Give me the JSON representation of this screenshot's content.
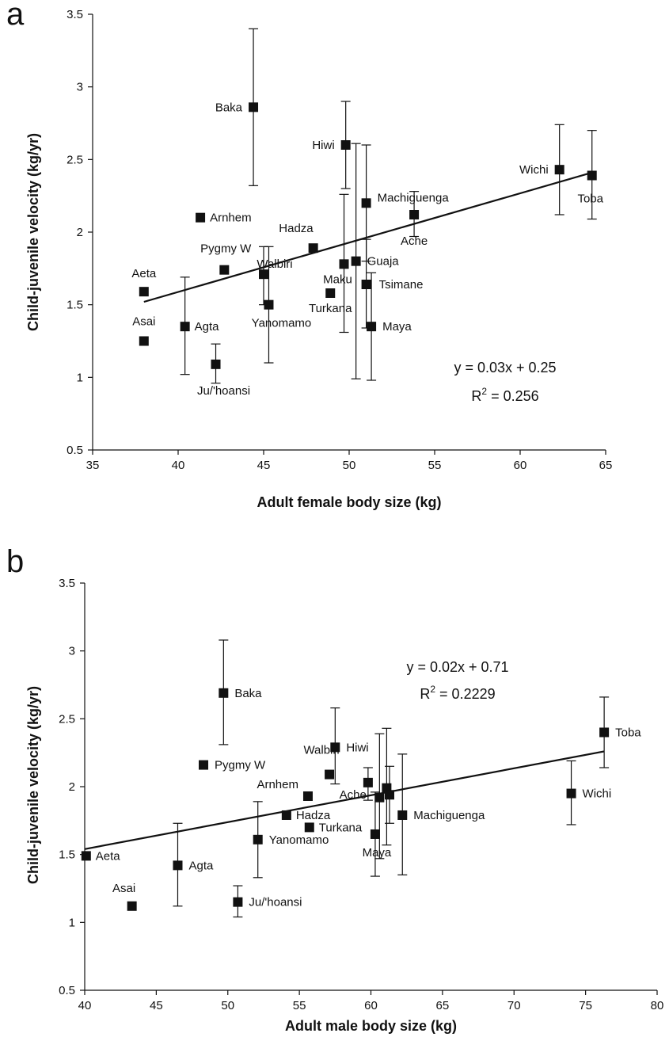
{
  "chart_data": [
    {
      "panel": "a",
      "type": "scatter",
      "xlabel": "Adult female body size (kg)",
      "ylabel": "Child-juvenile velocity (kg/yr)",
      "xlim": [
        35,
        65
      ],
      "ylim": [
        0.5,
        3.5
      ],
      "xticks": [
        "35",
        "40",
        "45",
        "50",
        "55",
        "60",
        "65"
      ],
      "yticks": [
        "0.5",
        "1",
        "1.5",
        "2",
        "2.5",
        "3",
        "3.5"
      ],
      "grid": false,
      "equation": "y = 0.03x + 0.25",
      "r2_prefix": "R",
      "r2_exp": "2",
      "r2_value": " = 0.256",
      "trendline": {
        "x1": 38.0,
        "y1": 1.52,
        "x2": 64.2,
        "y2": 2.41
      },
      "points": [
        {
          "label": "Baka",
          "x": 44.4,
          "y": 2.86,
          "err_low": 2.32,
          "err_high": 3.4,
          "anchor": "end",
          "dx": -14,
          "dy": 5
        },
        {
          "label": "Arnhem",
          "x": 41.3,
          "y": 2.1,
          "anchor": "start",
          "dx": 12,
          "dy": 5
        },
        {
          "label": "Pygmy W",
          "x": 42.7,
          "y": 1.74,
          "anchor": "end",
          "dx": 34,
          "dy": -22
        },
        {
          "label": "Walbiri",
          "x": 45.0,
          "y": 1.71,
          "err_low": 1.5,
          "err_high": 1.9,
          "anchor": "middle",
          "dx": 14,
          "dy": -8
        },
        {
          "label": "Aeta",
          "x": 38.0,
          "y": 1.59,
          "anchor": "middle",
          "dx": 0,
          "dy": -18
        },
        {
          "label": "Asai",
          "x": 38.0,
          "y": 1.25,
          "anchor": "middle",
          "dx": 0,
          "dy": -20
        },
        {
          "label": "Agta",
          "x": 40.4,
          "y": 1.35,
          "err_low": 1.02,
          "err_high": 1.69,
          "anchor": "start",
          "dx": 12,
          "dy": 5
        },
        {
          "label": "Ju/'hoansi",
          "x": 42.2,
          "y": 1.09,
          "err_low": 0.96,
          "err_high": 1.23,
          "anchor": "middle",
          "dx": 10,
          "dy": 38
        },
        {
          "label": "Yanomamo",
          "x": 45.3,
          "y": 1.5,
          "err_low": 1.1,
          "err_high": 1.9,
          "anchor": "middle",
          "dx": 16,
          "dy": 28
        },
        {
          "label": "Hadza",
          "x": 47.9,
          "y": 1.89,
          "anchor": "end",
          "dx": 0,
          "dy": -20
        },
        {
          "label": "Hiwi",
          "x": 49.8,
          "y": 2.6,
          "err_low": 2.3,
          "err_high": 2.9,
          "anchor": "end",
          "dx": -14,
          "dy": 5
        },
        {
          "label": "Maku",
          "x": 49.7,
          "y": 1.78,
          "err_low": 1.31,
          "err_high": 2.26,
          "anchor": "middle",
          "dx": -8,
          "dy": 24
        },
        {
          "label": "Turkana",
          "x": 48.9,
          "y": 1.58,
          "anchor": "middle",
          "dx": 0,
          "dy": 24
        },
        {
          "label": "Guaja",
          "x": 50.4,
          "y": 1.8,
          "err_low": 0.99,
          "err_high": 2.61,
          "anchor": "start",
          "dx": 14,
          "dy": 5
        },
        {
          "label": "Machiguenga",
          "x": 51.0,
          "y": 2.2,
          "err_low": 1.8,
          "err_high": 2.6,
          "anchor": "start",
          "dx": 14,
          "dy": -2
        },
        {
          "label": "Tsimane",
          "x": 51.0,
          "y": 1.64,
          "err_low": 1.34,
          "err_high": 1.95,
          "anchor": "start",
          "dx": 16,
          "dy": 5
        },
        {
          "label": "Maya",
          "x": 51.3,
          "y": 1.35,
          "err_low": 0.98,
          "err_high": 1.72,
          "anchor": "start",
          "dx": 14,
          "dy": 5
        },
        {
          "label": "Ache",
          "x": 53.8,
          "y": 2.12,
          "err_low": 1.97,
          "err_high": 2.28,
          "anchor": "middle",
          "dx": 0,
          "dy": 38
        },
        {
          "label": "Wichi",
          "x": 62.3,
          "y": 2.43,
          "err_low": 2.12,
          "err_high": 2.74,
          "anchor": "end",
          "dx": -14,
          "dy": 5
        },
        {
          "label": "Toba",
          "x": 64.2,
          "y": 2.39,
          "err_low": 2.09,
          "err_high": 2.7,
          "anchor": "middle",
          "dx": -2,
          "dy": 34
        }
      ]
    },
    {
      "panel": "b",
      "type": "scatter",
      "xlabel": "Adult male body size (kg)",
      "ylabel": "Child-juvenile velocity (kg/yr)",
      "xlim": [
        40,
        80
      ],
      "ylim": [
        0.5,
        3.5
      ],
      "xticks": [
        "40",
        "45",
        "50",
        "55",
        "60",
        "65",
        "70",
        "75",
        "80"
      ],
      "yticks": [
        "0.5",
        "1",
        "1.5",
        "2",
        "2.5",
        "3",
        "3.5"
      ],
      "grid": false,
      "equation": "y = 0.02x + 0.71",
      "r2_prefix": "R",
      "r2_exp": "2",
      "r2_value": " = 0.2229",
      "trendline": {
        "x1": 40.0,
        "y1": 1.54,
        "x2": 76.3,
        "y2": 2.26
      },
      "points": [
        {
          "label": "Baka",
          "x": 49.7,
          "y": 2.69,
          "err_low": 2.31,
          "err_high": 3.08,
          "anchor": "start",
          "dx": 14,
          "dy": 5
        },
        {
          "label": "Pygmy W",
          "x": 48.3,
          "y": 2.16,
          "anchor": "start",
          "dx": 14,
          "dy": 5
        },
        {
          "label": "Aeta",
          "x": 40.1,
          "y": 1.49,
          "anchor": "start",
          "dx": 12,
          "dy": 5
        },
        {
          "label": "Agta",
          "x": 46.5,
          "y": 1.42,
          "err_low": 1.12,
          "err_high": 1.73,
          "anchor": "start",
          "dx": 14,
          "dy": 5
        },
        {
          "label": "Asai",
          "x": 43.3,
          "y": 1.12,
          "anchor": "middle",
          "dx": -10,
          "dy": -18
        },
        {
          "label": "Ju/'hoansi",
          "x": 50.7,
          "y": 1.15,
          "err_low": 1.04,
          "err_high": 1.27,
          "anchor": "start",
          "dx": 14,
          "dy": 5
        },
        {
          "label": "Yanomamo",
          "x": 52.1,
          "y": 1.61,
          "err_low": 1.33,
          "err_high": 1.89,
          "anchor": "start",
          "dx": 14,
          "dy": 5
        },
        {
          "label": "Hadza",
          "x": 54.1,
          "y": 1.79,
          "anchor": "start",
          "dx": 12,
          "dy": 5
        },
        {
          "label": "Turkana",
          "x": 55.7,
          "y": 1.7,
          "anchor": "start",
          "dx": 12,
          "dy": 5
        },
        {
          "label": "Arnhem",
          "x": 55.6,
          "y": 1.93,
          "anchor": "end",
          "dx": -12,
          "dy": -10
        },
        {
          "label": "Walbiri",
          "x": 57.1,
          "y": 2.09,
          "anchor": "middle",
          "dx": -10,
          "dy": -26
        },
        {
          "label": "Hiwi",
          "x": 57.5,
          "y": 2.29,
          "err_low": 2.02,
          "err_high": 2.58,
          "anchor": "start",
          "dx": 14,
          "dy": 5
        },
        {
          "label": "Ache",
          "x": 59.8,
          "y": 2.03,
          "err_low": 1.9,
          "err_high": 2.14,
          "anchor": "end",
          "dx": -2,
          "dy": 20
        },
        {
          "label": "Maya",
          "x": 60.3,
          "y": 1.65,
          "err_low": 1.34,
          "err_high": 1.96,
          "anchor": "middle",
          "dx": 2,
          "dy": 28
        },
        {
          "label": "",
          "x": 60.6,
          "y": 1.92,
          "err_low": 1.47,
          "err_high": 2.39,
          "anchor": "middle",
          "dx": 0,
          "dy": 0
        },
        {
          "label": "",
          "x": 61.1,
          "y": 1.99,
          "err_low": 1.57,
          "err_high": 2.43,
          "anchor": "middle",
          "dx": 0,
          "dy": 0
        },
        {
          "label": "",
          "x": 61.3,
          "y": 1.94,
          "err_low": 1.73,
          "err_high": 2.15,
          "anchor": "middle",
          "dx": 0,
          "dy": 0
        },
        {
          "label": "Machiguenga",
          "x": 62.2,
          "y": 1.79,
          "err_low": 1.35,
          "err_high": 2.24,
          "anchor": "start",
          "dx": 14,
          "dy": 5
        },
        {
          "label": "Wichi",
          "x": 74.0,
          "y": 1.95,
          "err_low": 1.72,
          "err_high": 2.19,
          "anchor": "start",
          "dx": 14,
          "dy": 5
        },
        {
          "label": "Toba",
          "x": 76.3,
          "y": 2.4,
          "err_low": 2.14,
          "err_high": 2.66,
          "anchor": "start",
          "dx": 14,
          "dy": 5
        }
      ]
    }
  ]
}
